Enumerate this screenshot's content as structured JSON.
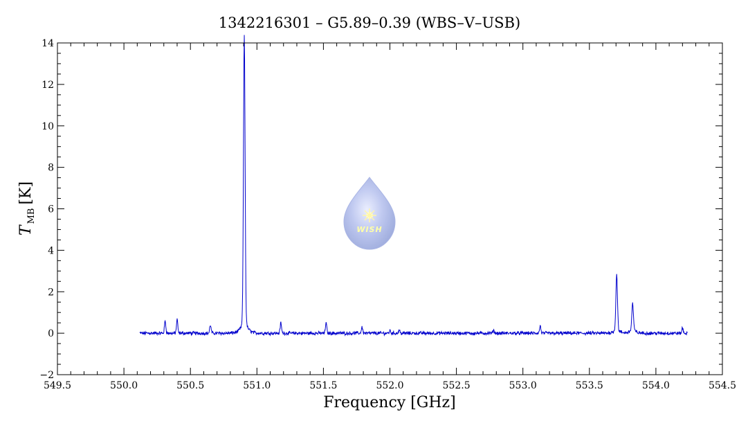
{
  "chart_data": {
    "type": "line",
    "title": "1342216301 – G5.89–0.39 (WBS–V–USB)",
    "xlabel": "Frequency [GHz]",
    "ylabel_main": "T",
    "ylabel_sub": "MB",
    "ylabel_unit": "[K]",
    "xlim": [
      549.5,
      554.5
    ],
    "ylim": [
      -2,
      14
    ],
    "xticks": [
      "549.5",
      "550.0",
      "550.5",
      "551.0",
      "551.5",
      "552.0",
      "552.5",
      "553.0",
      "553.5",
      "554.0",
      "554.5"
    ],
    "yticks": [
      "−2",
      "0",
      "2",
      "4",
      "6",
      "8",
      "10",
      "12",
      "14"
    ],
    "series": [
      {
        "color": "#0000cc",
        "baseline_range": [
          550.12,
          554.24
        ],
        "peaks": [
          {
            "x": 550.31,
            "y": 0.6
          },
          {
            "x": 550.4,
            "y": 0.65
          },
          {
            "x": 550.65,
            "y": 0.4
          },
          {
            "x": 550.905,
            "y": 13.5
          },
          {
            "x": 551.18,
            "y": 0.5
          },
          {
            "x": 551.52,
            "y": 0.5
          },
          {
            "x": 551.79,
            "y": 0.3
          },
          {
            "x": 552.0,
            "y": 0.12
          },
          {
            "x": 552.07,
            "y": 0.15
          },
          {
            "x": 552.78,
            "y": 0.15
          },
          {
            "x": 553.13,
            "y": 0.35
          },
          {
            "x": 553.705,
            "y": 2.6
          },
          {
            "x": 553.825,
            "y": 1.2
          },
          {
            "x": 554.2,
            "y": 0.25
          }
        ]
      }
    ]
  },
  "logo": {
    "label": "WISH",
    "icon": "wish-droplet-logo"
  }
}
